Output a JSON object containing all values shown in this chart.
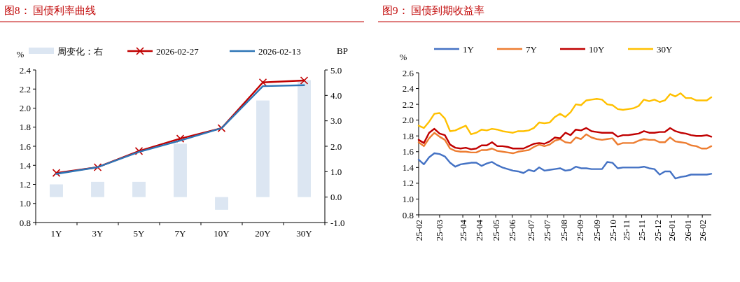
{
  "chart_data": [
    {
      "type": "line",
      "title": "图8：  国债利率曲线",
      "ylabel": "%",
      "y2label": "BP",
      "legend": "top",
      "categories": [
        "1Y",
        "3Y",
        "5Y",
        "7Y",
        "10Y",
        "20Y",
        "30Y"
      ],
      "ylim": [
        0.8,
        2.4
      ],
      "yticks": [
        {
          "value": 0.8,
          "label": "0.8"
        },
        {
          "value": 1,
          "label": "1.0"
        },
        {
          "value": 1.2,
          "label": "1.2"
        },
        {
          "value": 1.4,
          "label": "1.4"
        },
        {
          "value": 1.6,
          "label": "1.6"
        },
        {
          "value": 1.8,
          "label": "1.8"
        },
        {
          "value": 2,
          "label": "2.0"
        },
        {
          "value": 2.2,
          "label": "2.2"
        },
        {
          "value": 2.4,
          "label": "2.4"
        }
      ],
      "y2lim": [
        -1,
        5
      ],
      "y2ticks": [
        {
          "value": -1,
          "label": "-1.0"
        },
        {
          "value": 0,
          "label": "0.0"
        },
        {
          "value": 1,
          "label": "1.0"
        },
        {
          "value": 2,
          "label": "2.0"
        },
        {
          "value": 3,
          "label": "3.0"
        },
        {
          "value": 4,
          "label": "4.0"
        },
        {
          "value": 5,
          "label": "5.0"
        }
      ],
      "series": [
        {
          "name": "周变化：右",
          "type": "bar",
          "axis": "y2",
          "color": "#dce6f2",
          "values": [
            0.5,
            0.6,
            0.6,
            2.1,
            -0.5,
            3.8,
            4.6
          ]
        },
        {
          "name": "2026-02-27",
          "color": "#c00000",
          "marker": "cross",
          "values": [
            1.32,
            1.38,
            1.55,
            1.68,
            1.79,
            2.27,
            2.29
          ]
        },
        {
          "name": "2026-02-13",
          "color": "#2e75b6",
          "values": [
            1.31,
            1.38,
            1.54,
            1.66,
            1.79,
            2.23,
            2.24
          ]
        }
      ]
    },
    {
      "type": "line",
      "title": "图9：  国债到期收益率",
      "ylabel": "%",
      "legend": "top",
      "x": [
        "2025-02-01",
        "2025-02-08",
        "2025-02-15",
        "2025-02-22",
        "2025-03-01",
        "2025-03-08",
        "2025-03-15",
        "2025-03-22",
        "2025-03-29",
        "2025-04-05",
        "2025-04-12",
        "2025-04-19",
        "2025-04-26",
        "2025-05-03",
        "2025-05-10",
        "2025-05-17",
        "2025-05-24",
        "2025-05-31",
        "2025-06-07",
        "2025-06-14",
        "2025-06-21",
        "2025-06-28",
        "2025-07-05",
        "2025-07-12",
        "2025-07-19",
        "2025-07-26",
        "2025-08-02",
        "2025-08-09",
        "2025-08-16",
        "2025-08-23",
        "2025-08-30",
        "2025-09-06",
        "2025-09-13",
        "2025-09-20",
        "2025-09-27",
        "2025-10-04",
        "2025-10-11",
        "2025-10-18",
        "2025-10-25",
        "2025-11-01",
        "2025-11-08",
        "2025-11-15",
        "2025-11-22",
        "2025-11-29",
        "2025-12-06",
        "2025-12-13",
        "2025-12-20",
        "2025-12-27",
        "2026-01-03",
        "2026-01-10",
        "2026-01-17",
        "2026-01-24",
        "2026-01-31",
        "2026-02-07",
        "2026-02-14",
        "2026-02-21",
        "2026-02-27"
      ],
      "xlim": [
        "2025-02-01",
        "2026-02-27"
      ],
      "xticks": [
        {
          "value": "2025-02-01",
          "label": "25-02"
        },
        {
          "value": "2025-03-01",
          "label": "25-03"
        },
        {
          "value": "2025-04-01",
          "label": "25-04"
        },
        {
          "value": "2025-04-23",
          "label": "25-04"
        },
        {
          "value": "2025-05-15",
          "label": "25-05"
        },
        {
          "value": "2025-06-06",
          "label": "25-06"
        },
        {
          "value": "2025-07-01",
          "label": "25-07"
        },
        {
          "value": "2025-07-23",
          "label": "25-07"
        },
        {
          "value": "2025-08-14",
          "label": "25-08"
        },
        {
          "value": "2025-09-05",
          "label": "25-09"
        },
        {
          "value": "2025-09-27",
          "label": "25-09"
        },
        {
          "value": "2025-10-19",
          "label": "25-10"
        },
        {
          "value": "2025-11-05",
          "label": "25-11"
        },
        {
          "value": "2025-11-26",
          "label": "25-11"
        },
        {
          "value": "2025-12-17",
          "label": "25-12"
        },
        {
          "value": "2026-01-05",
          "label": "26-01"
        },
        {
          "value": "2026-01-27",
          "label": "26-01"
        },
        {
          "value": "2026-02-15",
          "label": "26-02"
        }
      ],
      "ylim": [
        0.8,
        2.6
      ],
      "yticks": [
        {
          "value": 0.8,
          "label": "0.8"
        },
        {
          "value": 1,
          "label": "1.0"
        },
        {
          "value": 1.2,
          "label": "1.2"
        },
        {
          "value": 1.4,
          "label": "1.4"
        },
        {
          "value": 1.6,
          "label": "1.6"
        },
        {
          "value": 1.8,
          "label": "1.8"
        },
        {
          "value": 2,
          "label": "2.0"
        },
        {
          "value": 2.2,
          "label": "2.2"
        },
        {
          "value": 2.4,
          "label": "2.4"
        },
        {
          "value": 2.6,
          "label": "2.6"
        }
      ],
      "series": [
        {
          "name": "1Y",
          "color": "#4472c4",
          "values": [
            1.5,
            1.44,
            1.53,
            1.58,
            1.57,
            1.54,
            1.46,
            1.41,
            1.44,
            1.45,
            1.46,
            1.46,
            1.42,
            1.45,
            1.47,
            1.43,
            1.4,
            1.38,
            1.36,
            1.35,
            1.33,
            1.37,
            1.35,
            1.4,
            1.36,
            1.37,
            1.38,
            1.39,
            1.36,
            1.37,
            1.41,
            1.39,
            1.39,
            1.38,
            1.38,
            1.38,
            1.47,
            1.46,
            1.39,
            1.4,
            1.4,
            1.4,
            1.4,
            1.41,
            1.39,
            1.38,
            1.31,
            1.35,
            1.35,
            1.26,
            1.28,
            1.29,
            1.31,
            1.31,
            1.31,
            1.31,
            1.32
          ]
        },
        {
          "name": "7Y",
          "color": "#ed7d31",
          "values": [
            1.72,
            1.67,
            1.77,
            1.84,
            1.79,
            1.75,
            1.64,
            1.61,
            1.6,
            1.6,
            1.59,
            1.59,
            1.62,
            1.62,
            1.64,
            1.61,
            1.6,
            1.59,
            1.58,
            1.6,
            1.61,
            1.62,
            1.66,
            1.69,
            1.67,
            1.69,
            1.74,
            1.76,
            1.72,
            1.71,
            1.78,
            1.76,
            1.82,
            1.78,
            1.76,
            1.75,
            1.76,
            1.77,
            1.69,
            1.71,
            1.71,
            1.71,
            1.74,
            1.76,
            1.75,
            1.75,
            1.72,
            1.72,
            1.78,
            1.73,
            1.72,
            1.71,
            1.68,
            1.67,
            1.64,
            1.64,
            1.67
          ]
        },
        {
          "name": "10Y",
          "color": "#c00000",
          "values": [
            1.75,
            1.71,
            1.84,
            1.89,
            1.83,
            1.81,
            1.69,
            1.65,
            1.64,
            1.65,
            1.63,
            1.64,
            1.68,
            1.68,
            1.72,
            1.67,
            1.67,
            1.66,
            1.64,
            1.64,
            1.64,
            1.67,
            1.7,
            1.71,
            1.7,
            1.73,
            1.78,
            1.77,
            1.84,
            1.81,
            1.88,
            1.87,
            1.9,
            1.86,
            1.85,
            1.84,
            1.84,
            1.84,
            1.79,
            1.81,
            1.81,
            1.82,
            1.83,
            1.86,
            1.84,
            1.84,
            1.85,
            1.85,
            1.9,
            1.86,
            1.84,
            1.83,
            1.81,
            1.8,
            1.8,
            1.81,
            1.79
          ]
        },
        {
          "name": "30Y",
          "color": "#ffc000",
          "values": [
            1.93,
            1.9,
            1.98,
            2.08,
            2.09,
            2.02,
            1.86,
            1.87,
            1.9,
            1.93,
            1.82,
            1.84,
            1.88,
            1.87,
            1.89,
            1.88,
            1.86,
            1.85,
            1.84,
            1.86,
            1.86,
            1.87,
            1.9,
            1.97,
            1.96,
            1.97,
            2.04,
            2.08,
            2.04,
            2.1,
            2.2,
            2.19,
            2.25,
            2.26,
            2.27,
            2.26,
            2.2,
            2.19,
            2.14,
            2.13,
            2.14,
            2.15,
            2.18,
            2.26,
            2.24,
            2.26,
            2.23,
            2.25,
            2.33,
            2.3,
            2.34,
            2.28,
            2.28,
            2.25,
            2.25,
            2.25,
            2.29
          ]
        }
      ]
    }
  ]
}
